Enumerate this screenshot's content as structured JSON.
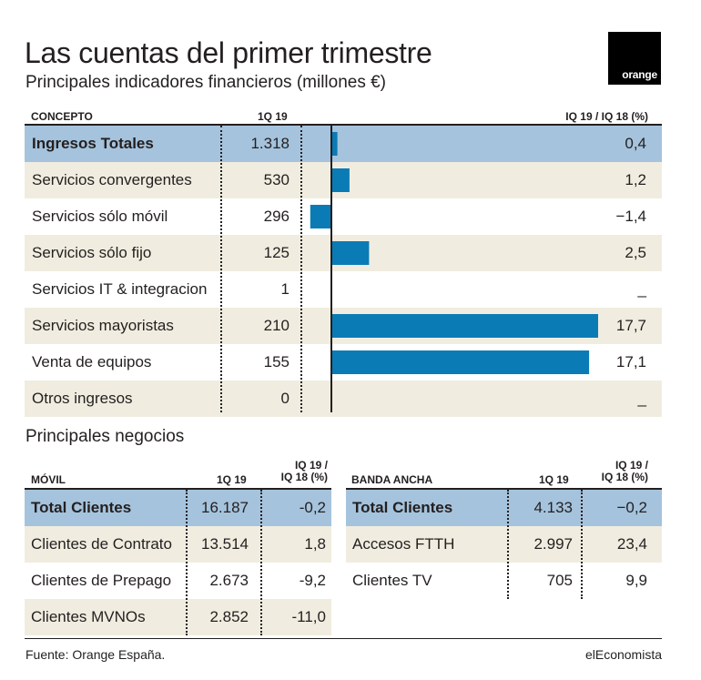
{
  "title": "Las cuentas del primer trimestre",
  "subtitle": "Principales indicadores financieros (millones €)",
  "logo_text": "orange",
  "colors": {
    "bar": "#0b7bb5",
    "highlight": "#a5c3dc",
    "alt_row": "#f0ede0"
  },
  "chart_data": {
    "type": "bar",
    "orientation": "horizontal",
    "columns": [
      "CONCEPTO",
      "1Q 19",
      "IQ 19 / IQ 18 (%)"
    ],
    "categories": [
      "Ingresos Totales",
      "Servicios convergentes",
      "Servicios sólo móvil",
      "Servicios sólo fijo",
      "Servicios IT & integracion",
      "Servicios mayoristas",
      "Venta de equipos",
      "Otros ingresos"
    ],
    "q1_19": [
      "1.318",
      "530",
      "296",
      "125",
      "1",
      "210",
      "155",
      "0"
    ],
    "values": [
      0.4,
      1.2,
      -1.4,
      2.5,
      null,
      17.7,
      17.1,
      null
    ],
    "value_labels": [
      "0,4",
      "1,2",
      "−1,4",
      "2,5",
      "_",
      "17,7",
      "17,1",
      "_"
    ],
    "xlim": [
      -1.6,
      17.7
    ],
    "grid": false
  },
  "section_title": "Principales negocios",
  "movil": {
    "header": "MÓVIL",
    "col1": "1Q 19",
    "col2_line1": "IQ 19 /",
    "col2_line2": "IQ 18 (%)",
    "rows": [
      {
        "label": "Total Clientes",
        "q1": "16.187",
        "pct": "-0,2"
      },
      {
        "label": "Clientes de Contrato",
        "q1": "13.514",
        "pct": "1,8"
      },
      {
        "label": "Clientes de Prepago",
        "q1": "2.673",
        "pct": "-9,2"
      },
      {
        "label": "Clientes MVNOs",
        "q1": "2.852",
        "pct": "-11,0"
      }
    ]
  },
  "banda": {
    "header": "BANDA ANCHA",
    "col1": "1Q 19",
    "col2_line1": "IQ 19 /",
    "col2_line2": "IQ 18 (%)",
    "rows": [
      {
        "label": "Total Clientes",
        "q1": "4.133",
        "pct": "−0,2"
      },
      {
        "label": "Accesos FTTH",
        "q1": "2.997",
        "pct": "23,4"
      },
      {
        "label": "Clientes TV",
        "q1": "705",
        "pct": "9,9"
      }
    ]
  },
  "footer": {
    "source": "Fuente: Orange España.",
    "brand": "elEconomista"
  }
}
